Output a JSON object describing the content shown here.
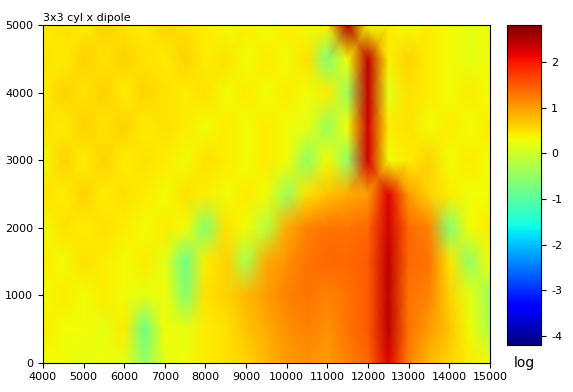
{
  "chart_data": {
    "type": "heatmap",
    "title": "3x3 cyl x dipole",
    "x": [
      4000,
      4500,
      5000,
      5500,
      6000,
      6500,
      7000,
      7500,
      8000,
      8500,
      9000,
      9500,
      10000,
      10500,
      11000,
      11500,
      12000,
      12500,
      13000,
      13500,
      14000,
      14500,
      15000
    ],
    "y": [
      0,
      500,
      1000,
      1500,
      2000,
      2500,
      3000,
      3500,
      4000,
      4500,
      5000
    ],
    "cells": [
      [
        0.3,
        0.3,
        0.2,
        0.3,
        0.2,
        -0.5,
        0.2,
        0.3,
        0.4,
        0.5,
        0.6,
        0.8,
        1.0,
        1.1,
        1.0,
        1.2,
        1.4,
        2.2,
        1.2,
        0.8,
        0.6,
        0.4,
        0.3
      ],
      [
        0.4,
        0.3,
        0.3,
        0.2,
        0.4,
        -0.8,
        0.3,
        0.2,
        0.4,
        0.5,
        0.7,
        0.9,
        1.1,
        1.2,
        1.1,
        1.3,
        1.5,
        2.4,
        1.3,
        1.0,
        0.7,
        0.3,
        -0.3
      ],
      [
        0.3,
        0.4,
        0.3,
        0.4,
        0.3,
        0.2,
        0.3,
        -0.6,
        0.5,
        0.6,
        0.8,
        1.0,
        1.2,
        1.3,
        1.2,
        1.3,
        1.5,
        2.4,
        1.3,
        1.2,
        0.6,
        0.2,
        -0.4
      ],
      [
        0.4,
        0.3,
        0.5,
        0.4,
        0.3,
        0.4,
        0.2,
        -0.8,
        0.4,
        0.6,
        -0.3,
        0.9,
        1.1,
        1.3,
        1.4,
        1.4,
        1.5,
        2.4,
        1.4,
        1.3,
        0.5,
        -0.5,
        0.3
      ],
      [
        0.3,
        0.5,
        0.4,
        0.5,
        0.4,
        0.3,
        0.4,
        0.3,
        -0.6,
        0.5,
        0.3,
        -0.2,
        0.9,
        1.2,
        1.3,
        1.3,
        1.4,
        2.3,
        1.4,
        1.2,
        -0.6,
        0.3,
        0.4
      ],
      [
        0.5,
        0.4,
        0.6,
        0.4,
        0.5,
        0.4,
        0.3,
        0.5,
        0.4,
        0.3,
        0.4,
        0.3,
        -0.4,
        0.5,
        0.7,
        0.9,
        1.0,
        2.2,
        1.0,
        0.6,
        0.4,
        0.3,
        0.3
      ],
      [
        0.3,
        0.6,
        0.4,
        0.6,
        0.4,
        0.5,
        0.4,
        0.3,
        0.5,
        0.4,
        0.3,
        0.4,
        0.3,
        -0.5,
        0.3,
        -0.5,
        2.3,
        0.3,
        0.4,
        0.6,
        0.3,
        0.4,
        0.3
      ],
      [
        0.5,
        0.4,
        0.6,
        0.5,
        0.6,
        0.4,
        0.5,
        0.4,
        0.3,
        0.4,
        0.3,
        0.4,
        0.3,
        0.2,
        -0.4,
        0.3,
        2.3,
        0.4,
        0.5,
        0.3,
        0.4,
        0.3,
        0.4
      ],
      [
        0.4,
        0.6,
        0.5,
        0.6,
        0.4,
        0.6,
        0.5,
        0.4,
        0.5,
        0.3,
        0.4,
        0.3,
        0.4,
        0.3,
        0.4,
        -0.4,
        2.4,
        0.2,
        0.5,
        0.4,
        0.3,
        0.4,
        0.3
      ],
      [
        0.5,
        0.4,
        0.6,
        0.5,
        0.6,
        0.5,
        0.4,
        0.6,
        0.4,
        0.5,
        0.3,
        0.4,
        0.3,
        0.5,
        -0.6,
        0.3,
        2.4,
        0.4,
        0.6,
        0.4,
        0.3,
        0.2,
        0.3
      ],
      [
        0.4,
        0.5,
        0.4,
        0.6,
        0.5,
        0.4,
        0.6,
        0.5,
        0.4,
        0.3,
        0.4,
        0.3,
        0.4,
        0.3,
        0.4,
        2.5,
        0.3,
        0.4,
        0.3,
        0.4,
        0.3,
        0.2,
        0.3
      ]
    ],
    "xlim": [
      4000,
      15000
    ],
    "ylim": [
      0,
      5000
    ],
    "xticks": [
      4000,
      5000,
      6000,
      7000,
      8000,
      9000,
      10000,
      11000,
      12000,
      13000,
      14000,
      15000
    ],
    "yticks": [
      0,
      1000,
      2000,
      3000,
      4000,
      5000
    ],
    "colorbar_range": [
      -4.2,
      2.8
    ],
    "colorbar_ticks": [
      -4,
      -3,
      -2,
      -1,
      0,
      1,
      2
    ],
    "colorbar_label": "log"
  }
}
